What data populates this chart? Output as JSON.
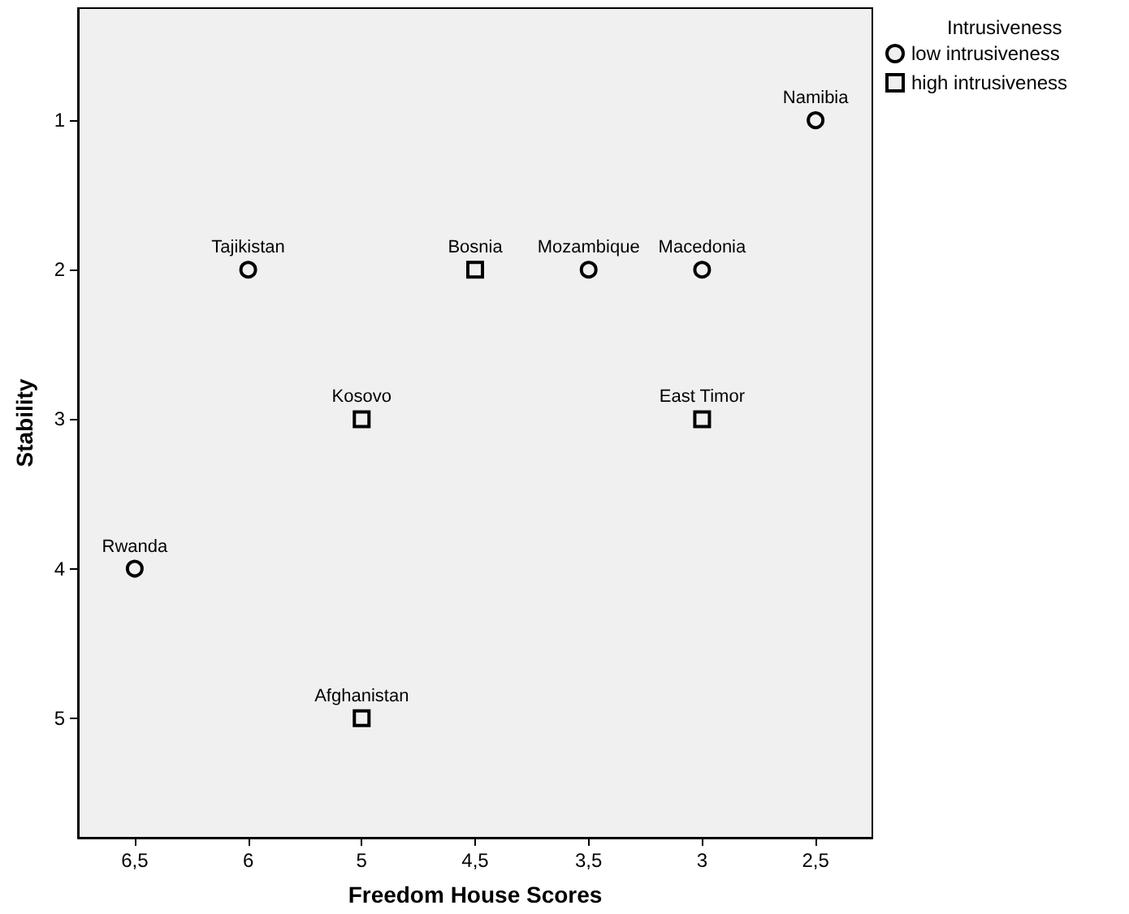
{
  "chart_data": {
    "type": "scatter",
    "xlabel": "Freedom House Scores",
    "ylabel": "Stability",
    "legend_title": "Intrusiveness",
    "legend": "top right",
    "grid": false,
    "categories": [
      "6,5",
      "6",
      "5",
      "4,5",
      "3,5",
      "3",
      "2,5"
    ],
    "ylim": [
      5.8,
      0.25
    ],
    "yticks": [
      1,
      2,
      3,
      4,
      5
    ],
    "series": [
      {
        "name": "low intrusiveness",
        "color": "#000000",
        "marker": "circle",
        "x": [
          "2,5",
          "6",
          "3,5",
          "3",
          "6,5"
        ],
        "values": [
          1,
          2,
          2,
          2,
          4
        ]
      },
      {
        "name": "high intrusiveness",
        "color": "#000000",
        "marker": "square",
        "x": [
          "4,5",
          "5",
          "3",
          "5"
        ],
        "values": [
          2,
          3,
          3,
          5
        ]
      }
    ],
    "annotations": [
      {
        "text": "Namibia",
        "x": "2,5",
        "y": 1
      },
      {
        "text": "Tajikistan",
        "x": "6",
        "y": 2
      },
      {
        "text": "Bosnia",
        "x": "4,5",
        "y": 2
      },
      {
        "text": "Mozambique",
        "x": "3,5",
        "y": 2
      },
      {
        "text": "Macedonia",
        "x": "3",
        "y": 2
      },
      {
        "text": "Kosovo",
        "x": "5",
        "y": 3
      },
      {
        "text": "East Timor",
        "x": "3",
        "y": 3
      },
      {
        "text": "Rwanda",
        "x": "6,5",
        "y": 4
      },
      {
        "text": "Afghanistan",
        "x": "5",
        "y": 5
      }
    ]
  }
}
